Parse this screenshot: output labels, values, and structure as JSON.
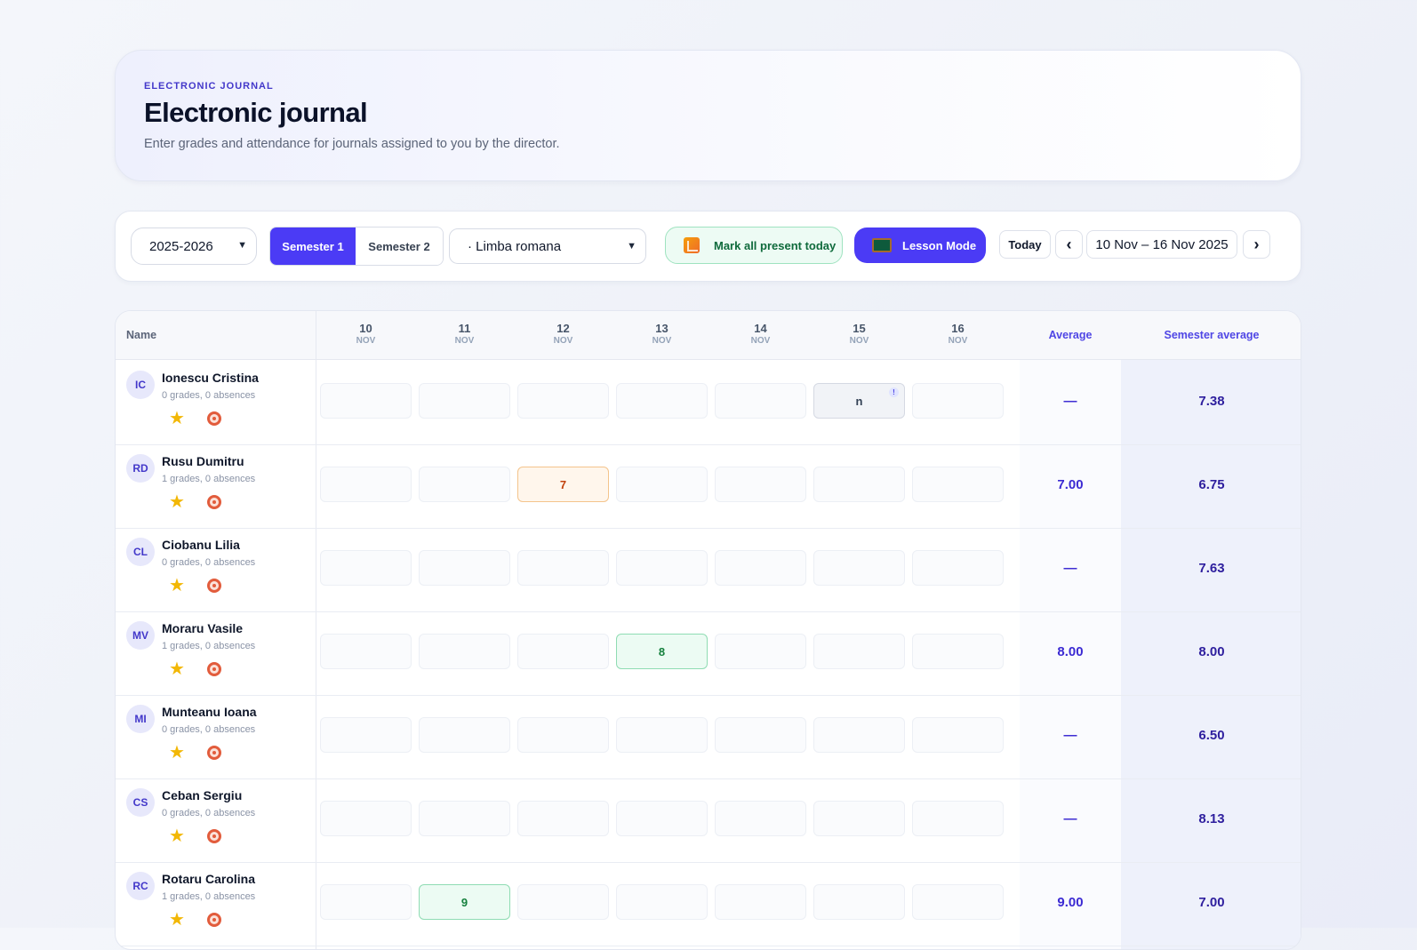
{
  "header": {
    "eyebrow": "ELECTRONIC JOURNAL",
    "title": "Electronic journal",
    "subtitle": "Enter grades and attendance for journals assigned to you by the director."
  },
  "toolbar": {
    "year": "2025-2026",
    "semester_1": "Semester 1",
    "semester_2": "Semester 2",
    "subject": "· Limba romana",
    "mark_present": "Mark all present today",
    "lesson_mode": "Lesson Mode",
    "today": "Today",
    "prev": "‹",
    "next": "›",
    "week": "10 Nov – 16 Nov 2025"
  },
  "table": {
    "name_header": "Name",
    "average_header": "Average",
    "semester_average_header": "Semester average",
    "days": [
      {
        "num": "10",
        "month": "NOV"
      },
      {
        "num": "11",
        "month": "NOV"
      },
      {
        "num": "12",
        "month": "NOV"
      },
      {
        "num": "13",
        "month": "NOV"
      },
      {
        "num": "14",
        "month": "NOV"
      },
      {
        "num": "15",
        "month": "NOV"
      },
      {
        "num": "16",
        "month": "NOV"
      }
    ],
    "students": [
      {
        "initials": "IC",
        "name": "Ionescu Cristina",
        "meta": "0 grades, 0 absences",
        "cells": [
          "",
          "",
          "",
          "",
          "",
          "n",
          ""
        ],
        "avg": "—",
        "sem": "7.38"
      },
      {
        "initials": "RD",
        "name": "Rusu Dumitru",
        "meta": "1 grades, 0 absences",
        "cells": [
          "",
          "",
          "7",
          "",
          "",
          "",
          ""
        ],
        "avg": "7.00",
        "sem": "6.75"
      },
      {
        "initials": "CL",
        "name": "Ciobanu Lilia",
        "meta": "0 grades, 0 absences",
        "cells": [
          "",
          "",
          "",
          "",
          "",
          "",
          ""
        ],
        "avg": "—",
        "sem": "7.63"
      },
      {
        "initials": "MV",
        "name": "Moraru Vasile",
        "meta": "1 grades, 0 absences",
        "cells": [
          "",
          "",
          "",
          "8",
          "",
          "",
          ""
        ],
        "avg": "8.00",
        "sem": "8.00"
      },
      {
        "initials": "MI",
        "name": "Munteanu Ioana",
        "meta": "0 grades, 0 absences",
        "cells": [
          "",
          "",
          "",
          "",
          "",
          "",
          ""
        ],
        "avg": "—",
        "sem": "6.50"
      },
      {
        "initials": "CS",
        "name": "Ceban Sergiu",
        "meta": "0 grades, 0 absences",
        "cells": [
          "",
          "",
          "",
          "",
          "",
          "",
          ""
        ],
        "avg": "—",
        "sem": "8.13"
      },
      {
        "initials": "RC",
        "name": "Rotaru Carolina",
        "meta": "1 grades, 0 absences",
        "cells": [
          "",
          "9",
          "",
          "",
          "",
          "",
          ""
        ],
        "avg": "9.00",
        "sem": "7.00"
      }
    ]
  },
  "colors": {
    "accent": "#4b3bf5",
    "grade_orange": "#c2410c",
    "grade_green": "#15803d"
  }
}
